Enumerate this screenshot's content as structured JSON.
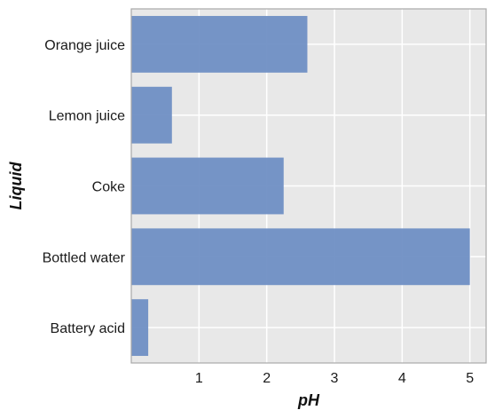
{
  "chart_data": {
    "type": "bar",
    "orientation": "horizontal",
    "categories": [
      "Orange juice",
      "Lemon juice",
      "Coke",
      "Bottled water",
      "Battery acid"
    ],
    "values": [
      2.6,
      0.6,
      2.25,
      5.0,
      0.25
    ],
    "xlabel": "pH",
    "ylabel": "Liquid",
    "xlim": [
      0,
      5.24
    ],
    "xticks": [
      1,
      2,
      3,
      4,
      5
    ],
    "grid": true,
    "colors": {
      "bar": "#6f8fc4",
      "plot_background": "#e8e8e8",
      "grid": "#ffffff",
      "frame": "#a8a8a8"
    }
  }
}
